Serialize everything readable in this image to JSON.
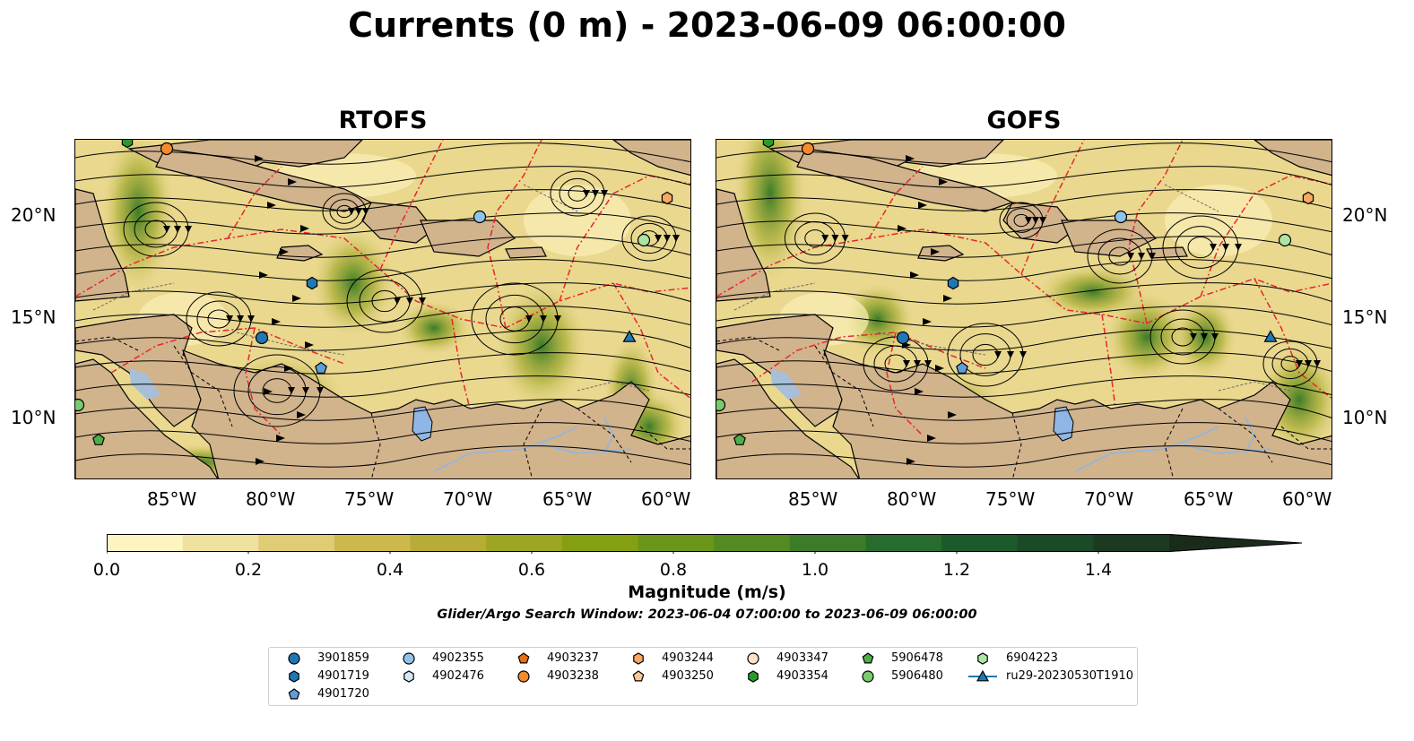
{
  "title": "Currents (0 m) - 2023-06-09 06:00:00",
  "panels": [
    {
      "title": "RTOFS"
    },
    {
      "title": "GOFS"
    }
  ],
  "map_axes": {
    "lon_ticks": [
      "85°W",
      "80°W",
      "75°W",
      "70°W",
      "65°W",
      "60°W"
    ],
    "lat_ticks": [
      "20°N",
      "15°N",
      "10°N"
    ]
  },
  "colorbar": {
    "label": "Magnitude (m/s)",
    "range": [
      0.0,
      1.5
    ],
    "extend": "max",
    "ticks": [
      "0.0",
      "0.2",
      "0.4",
      "0.6",
      "0.8",
      "1.0",
      "1.2",
      "1.4"
    ],
    "colors": [
      "#fdf5c0",
      "#efe2a0",
      "#dfcc74",
      "#cdb84c",
      "#b7ac36",
      "#9ca524",
      "#84a012",
      "#6b961a",
      "#538a22",
      "#3c7c28",
      "#276c2e",
      "#1c5a2c",
      "#1b4a27",
      "#1c3a22",
      "#1a2b1b"
    ]
  },
  "search_window": "Glider/Argo Search Window: 2023-06-04 07:00:00 to 2023-06-09 06:00:00",
  "legend": {
    "items": [
      {
        "label": "3901859",
        "marker": "circle",
        "color": "#1f78b4"
      },
      {
        "label": "4901719",
        "marker": "hexagon",
        "color": "#1f78b4"
      },
      {
        "label": "4901720",
        "marker": "pentagon",
        "color": "#5f9fd8"
      },
      {
        "label": "4902355",
        "marker": "circle",
        "color": "#91c2ea"
      },
      {
        "label": "4902476",
        "marker": "hexagon",
        "color": "#d3e9f7"
      },
      {
        "label": "4903237",
        "marker": "pentagon",
        "color": "#e66f12"
      },
      {
        "label": "4903238",
        "marker": "circle",
        "color": "#f4892e"
      },
      {
        "label": "4903244",
        "marker": "hexagon",
        "color": "#f7a865"
      },
      {
        "label": "4903250",
        "marker": "pentagon",
        "color": "#fbc695"
      },
      {
        "label": "4903347",
        "marker": "circle",
        "color": "#fde0c6"
      },
      {
        "label": "4903354",
        "marker": "hexagon",
        "color": "#2a9b2a"
      },
      {
        "label": "5906478",
        "marker": "pentagon",
        "color": "#4dae4a"
      },
      {
        "label": "5906480",
        "marker": "circle",
        "color": "#79cb6c"
      },
      {
        "label": "6904223",
        "marker": "hexagon",
        "color": "#abe5a3"
      },
      {
        "label": "ru29-20230530T1910",
        "marker": "triangle-line",
        "color": "#1f78b4"
      }
    ]
  },
  "colors": {
    "land": "#d1b38c",
    "lake": "#8fb6e4",
    "eez_line": "#e8262d",
    "streamline": "#000000"
  }
}
